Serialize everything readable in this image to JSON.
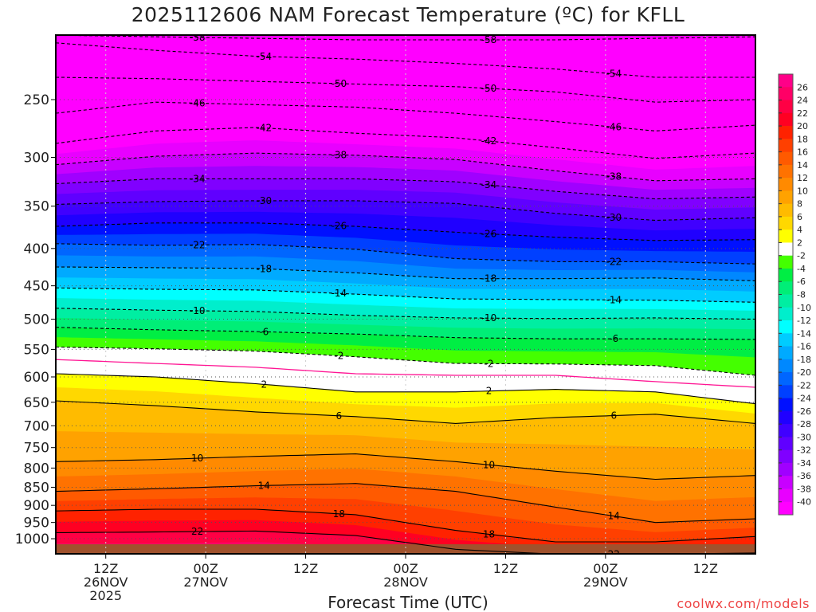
{
  "chart_data": {
    "type": "heatmap",
    "subtype": "time-pressure filled contour",
    "title": "2025112606 NAM Forecast Temperature (ºC) for KFLL",
    "xlabel": "Forecast Time (UTC)",
    "ylabel": "",
    "credit": "coolwx.com/models",
    "x_unit": "forecast hour",
    "xlim": [
      0,
      84
    ],
    "ylim_hPa": [
      1049,
      204
    ],
    "y_scale": "log",
    "y_ticks": [
      250,
      300,
      350,
      400,
      450,
      500,
      550,
      600,
      650,
      700,
      750,
      800,
      850,
      900,
      950,
      1000
    ],
    "x_ticks": [
      {
        "hour": 6,
        "label": "12Z",
        "sub": "26NOV",
        "sub2": "2025"
      },
      {
        "hour": 18,
        "label": "00Z",
        "sub": "27NOV",
        "sub2": ""
      },
      {
        "hour": 30,
        "label": "12Z",
        "sub": "",
        "sub2": ""
      },
      {
        "hour": 42,
        "label": "00Z",
        "sub": "28NOV",
        "sub2": ""
      },
      {
        "hour": 54,
        "label": "12Z",
        "sub": "",
        "sub2": ""
      },
      {
        "hour": 66,
        "label": "00Z",
        "sub": "29NOV",
        "sub2": ""
      },
      {
        "hour": 78,
        "label": "12Z",
        "sub": "",
        "sub2": ""
      }
    ],
    "times": [
      0,
      12,
      24,
      36,
      48,
      60,
      72,
      84
    ],
    "isotherms_hPa": {
      "-58": [
        204,
        205,
        206,
        207,
        207,
        207,
        206,
        205
      ],
      "-54": [
        209,
        214,
        218,
        220,
        223,
        227,
        233,
        233
      ],
      "-50": [
        233,
        234,
        236,
        238,
        240,
        244,
        252,
        250
      ],
      "-46": [
        261,
        252,
        254,
        256,
        261,
        268,
        276,
        271
      ],
      "-42": [
        287,
        276,
        273,
        278,
        282,
        291,
        301,
        296
      ],
      "-38": [
        307,
        299,
        296,
        298,
        302,
        313,
        323,
        321
      ],
      "-34": [
        326,
        321,
        321,
        321,
        324,
        334,
        342,
        340
      ],
      "-30": [
        348,
        345,
        344,
        344,
        347,
        358,
        366,
        363
      ],
      "-26": [
        373,
        369,
        369,
        373,
        380,
        386,
        390,
        389
      ],
      "-22": [
        394,
        396,
        395,
        401,
        413,
        417,
        417,
        420
      ],
      "-18": [
        424,
        425,
        426,
        432,
        440,
        440,
        439,
        443
      ],
      "-14": [
        453,
        455,
        456,
        462,
        469,
        470,
        471,
        474
      ],
      "-10": [
        483,
        486,
        488,
        494,
        498,
        499,
        498,
        500
      ],
      "-6": [
        513,
        517,
        520,
        524,
        530,
        532,
        532,
        533
      ],
      "-2": [
        546,
        549,
        553,
        563,
        575,
        576,
        579,
        597
      ],
      "0": [
        568,
        575,
        582,
        594,
        597,
        597,
        609,
        620
      ],
      "2": [
        594,
        600,
        613,
        629,
        629,
        624,
        629,
        653
      ],
      "6": [
        647,
        657,
        670,
        680,
        695,
        682,
        675,
        695
      ],
      "10": [
        784,
        779,
        771,
        765,
        784,
        808,
        829,
        819
      ],
      "14": [
        861,
        854,
        846,
        840,
        861,
        905,
        950,
        939
      ],
      "18": [
        916,
        911,
        911,
        927,
        974,
        1010,
        1010,
        993
      ],
      "22": [
        981,
        979,
        976,
        990,
        1034,
        1050,
        1050,
        1046
      ]
    },
    "colorbar": {
      "labels": [
        "26",
        "24",
        "22",
        "20",
        "18",
        "16",
        "14",
        "12",
        "10",
        "8",
        "6",
        "4",
        "2",
        "-2",
        "-4",
        "-6",
        "-8",
        "-10",
        "-12",
        "-14",
        "-16",
        "-18",
        "-20",
        "-22",
        "-24",
        "-26",
        "-28",
        "-30",
        "-32",
        "-34",
        "-36",
        "-38",
        "-40"
      ],
      "bands": [
        {
          "min": 26,
          "color": "#ff0088"
        },
        {
          "min": 24,
          "color": "#ff0066"
        },
        {
          "min": 22,
          "color": "#ff0044"
        },
        {
          "min": 20,
          "color": "#ff0022"
        },
        {
          "min": 18,
          "color": "#ff2200"
        },
        {
          "min": 16,
          "color": "#ff4000"
        },
        {
          "min": 14,
          "color": "#ff5a00"
        },
        {
          "min": 12,
          "color": "#ff7200"
        },
        {
          "min": 10,
          "color": "#ff8a00"
        },
        {
          "min": 8,
          "color": "#ffa200"
        },
        {
          "min": 6,
          "color": "#ffbb00"
        },
        {
          "min": 4,
          "color": "#ffd800"
        },
        {
          "min": 2,
          "color": "#ffff00"
        },
        {
          "min": -2,
          "color": "#ffffff"
        },
        {
          "min": -4,
          "color": "#44ff00"
        },
        {
          "min": -6,
          "color": "#00ee44"
        },
        {
          "min": -8,
          "color": "#00ee77"
        },
        {
          "min": -10,
          "color": "#00eea2"
        },
        {
          "min": -12,
          "color": "#00eecc"
        },
        {
          "min": -14,
          "color": "#00ffff"
        },
        {
          "min": -16,
          "color": "#00ccff"
        },
        {
          "min": -18,
          "color": "#00aaff"
        },
        {
          "min": -20,
          "color": "#0088ff"
        },
        {
          "min": -22,
          "color": "#0066ff"
        },
        {
          "min": -24,
          "color": "#0040ff"
        },
        {
          "min": -26,
          "color": "#0010ff"
        },
        {
          "min": -28,
          "color": "#2000ff"
        },
        {
          "min": -30,
          "color": "#4000ff"
        },
        {
          "min": -32,
          "color": "#6000ff"
        },
        {
          "min": -34,
          "color": "#8000ff"
        },
        {
          "min": -36,
          "color": "#a000ff"
        },
        {
          "min": -38,
          "color": "#c800ff"
        },
        {
          "min": -40,
          "color": "#e800ff"
        },
        {
          "min": -999,
          "color": "#ff00ff"
        }
      ]
    },
    "ground_color": "#a0522d",
    "freezing_line_color": "#ff1493"
  }
}
